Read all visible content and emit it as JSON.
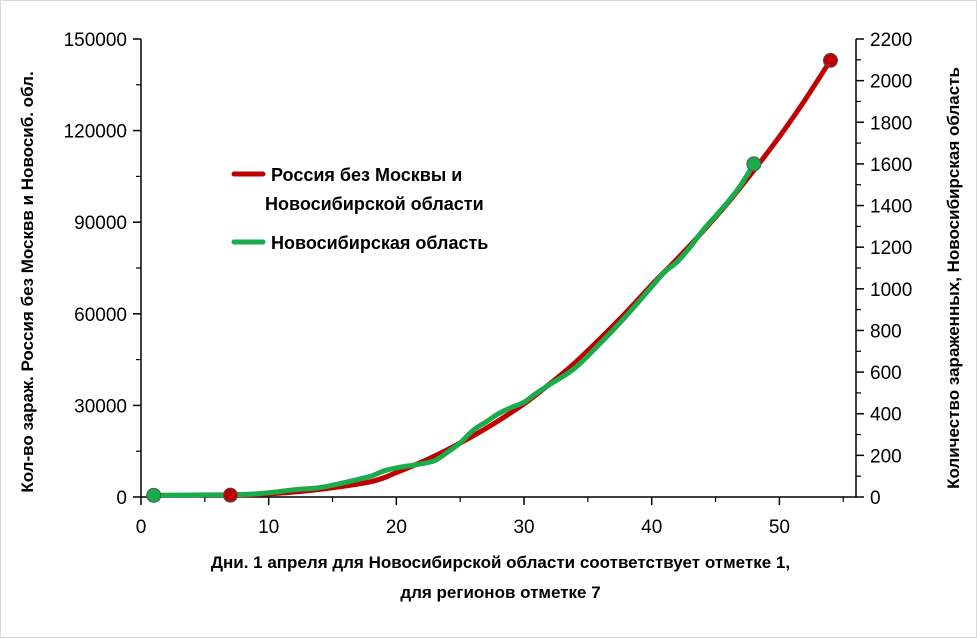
{
  "chart_data": {
    "type": "line",
    "x": {
      "label_line1": "Дни. 1 апреля для Новосибирской области соответствует отметке 1,",
      "label_line2": "для регионов отметке 7",
      "lim": [
        0,
        56
      ],
      "ticks": [
        0,
        10,
        20,
        30,
        40,
        50
      ]
    },
    "y_left": {
      "label": "Кол-во зараж. Россия без Москвв и Новосиб. обл.",
      "lim": [
        0,
        150000
      ],
      "ticks": [
        0,
        30000,
        60000,
        90000,
        120000,
        150000
      ]
    },
    "y_right": {
      "label": "Количество зараженных, Новосибирская область",
      "lim": [
        0,
        2200
      ],
      "ticks": [
        0,
        200,
        400,
        600,
        800,
        1000,
        1200,
        1400,
        1600,
        1800,
        2000,
        2200
      ]
    },
    "legend": {
      "placement": "upper-left-inside",
      "entries": [
        {
          "label_line1": "Россия без Москвы и",
          "label_line2": "Новосибирской области"
        },
        {
          "label_line1": "Новосибирская область",
          "label_line2": ""
        }
      ]
    },
    "series": [
      {
        "name": "Россия без Москвы и Новосибирской области",
        "axis": "left",
        "color": "#c00000",
        "x": [
          7,
          10,
          14,
          18,
          20,
          22,
          24,
          26,
          28,
          30,
          32,
          34,
          36,
          38,
          40,
          42,
          44,
          46,
          48,
          50,
          52,
          54
        ],
        "y": [
          600,
          1000,
          2500,
          5000,
          8000,
          11500,
          15500,
          20000,
          25000,
          30500,
          37000,
          44000,
          52000,
          60500,
          69500,
          78000,
          87000,
          96500,
          107000,
          118000,
          130000,
          143000
        ],
        "markers": [
          {
            "x": 7,
            "y": 600
          },
          {
            "x": 54,
            "y": 143000
          }
        ]
      },
      {
        "name": "Новосибирская область",
        "axis": "right",
        "color": "#1aab4b",
        "x": [
          1,
          5,
          8,
          10,
          12,
          14,
          16,
          18,
          19,
          20,
          21,
          22,
          23,
          24,
          25,
          26,
          27,
          28,
          29,
          30,
          31,
          32,
          34,
          36,
          38,
          40,
          41,
          42,
          43,
          44,
          45,
          46,
          47,
          48
        ],
        "y": [
          8,
          10,
          12,
          20,
          35,
          45,
          70,
          100,
          125,
          140,
          150,
          160,
          175,
          215,
          260,
          320,
          360,
          400,
          430,
          455,
          500,
          540,
          620,
          740,
          870,
          1010,
          1080,
          1130,
          1200,
          1280,
          1350,
          1420,
          1500,
          1600
        ],
        "markers": [
          {
            "x": 1,
            "y": 8
          },
          {
            "x": 48,
            "y": 1600
          }
        ]
      }
    ]
  }
}
